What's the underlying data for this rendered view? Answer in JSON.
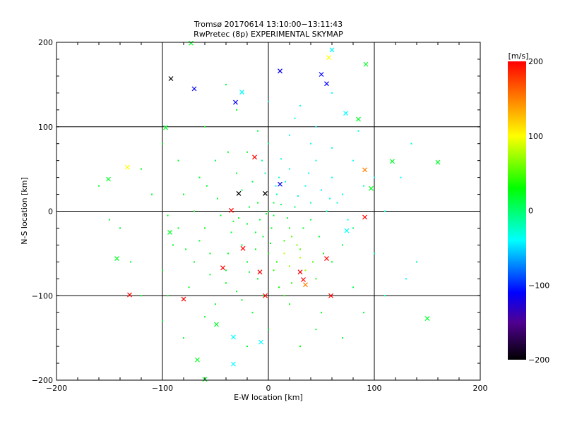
{
  "chart_data": {
    "type": "scatter",
    "title": "Tromsø 20170614 13:10:00−13:11:43",
    "subtitle": "RwPretec (8p) EXPERIMENTAL SKYMAP",
    "xlabel": "E-W location [km]",
    "ylabel": "N-S location [km]",
    "xlim": [
      -200,
      200
    ],
    "ylim": [
      -200,
      200
    ],
    "xticks": [
      -200,
      -100,
      0,
      100,
      200
    ],
    "yticks": [
      -200,
      -100,
      0,
      100,
      200
    ],
    "xtick_labels": [
      "−200",
      "−100",
      "0",
      "100",
      "200"
    ],
    "ytick_labels": [
      "−200",
      "−100",
      "0",
      "100",
      "200"
    ],
    "grid": true,
    "colorbar": {
      "label": "[m/s]",
      "range": [
        -200,
        200
      ],
      "tick_labels": [
        "200",
        "100",
        "0",
        "−100",
        "−200"
      ],
      "ticks": [
        200,
        100,
        0,
        -100,
        -200
      ],
      "stops": [
        {
          "value": 200,
          "color": "#ff0000"
        },
        {
          "value": 150,
          "color": "#ff8000"
        },
        {
          "value": 100,
          "color": "#ffff00"
        },
        {
          "value": 30,
          "color": "#00ff00"
        },
        {
          "value": -40,
          "color": "#00ffff"
        },
        {
          "value": -110,
          "color": "#0000ff"
        },
        {
          "value": -150,
          "color": "#500090"
        },
        {
          "value": -200,
          "color": "#000000"
        }
      ]
    },
    "series": [
      {
        "name": "dots",
        "marker": "dot",
        "columns": [
          "x_km",
          "y_km",
          "velocity_ms"
        ],
        "points": [
          [
            0,
            0,
            20
          ],
          [
            5,
            -5,
            15
          ],
          [
            -10,
            10,
            25
          ],
          [
            12,
            8,
            10
          ],
          [
            -20,
            -15,
            20
          ],
          [
            20,
            -20,
            30
          ],
          [
            -5,
            -30,
            20
          ],
          [
            15,
            -35,
            40
          ],
          [
            -25,
            -40,
            15
          ],
          [
            30,
            -45,
            50
          ],
          [
            -35,
            -25,
            20
          ],
          [
            25,
            5,
            0
          ],
          [
            40,
            10,
            -20
          ],
          [
            35,
            30,
            -35
          ],
          [
            50,
            25,
            -40
          ],
          [
            10,
            40,
            -30
          ],
          [
            20,
            50,
            -25
          ],
          [
            -15,
            35,
            10
          ],
          [
            -30,
            45,
            20
          ],
          [
            45,
            60,
            -30
          ],
          [
            60,
            40,
            -35
          ],
          [
            70,
            20,
            -40
          ],
          [
            55,
            0,
            -20
          ],
          [
            -45,
            -5,
            20
          ],
          [
            -60,
            -20,
            25
          ],
          [
            -55,
            -50,
            20
          ],
          [
            -40,
            -70,
            15
          ],
          [
            -20,
            -60,
            20
          ],
          [
            0,
            -50,
            30
          ],
          [
            5,
            -70,
            40
          ],
          [
            20,
            -65,
            70
          ],
          [
            30,
            -55,
            75
          ],
          [
            15,
            -50,
            80
          ],
          [
            -10,
            -80,
            20
          ],
          [
            10,
            -90,
            30
          ],
          [
            -30,
            -95,
            20
          ],
          [
            45,
            -80,
            40
          ],
          [
            60,
            -60,
            20
          ],
          [
            70,
            -40,
            10
          ],
          [
            80,
            -20,
            0
          ],
          [
            -70,
            0,
            20
          ],
          [
            -80,
            20,
            25
          ],
          [
            -65,
            40,
            20
          ],
          [
            -50,
            60,
            10
          ],
          [
            -20,
            70,
            20
          ],
          [
            0,
            80,
            0
          ],
          [
            20,
            90,
            -30
          ],
          [
            40,
            80,
            -35
          ],
          [
            60,
            75,
            -30
          ],
          [
            80,
            60,
            -40
          ],
          [
            90,
            30,
            -20
          ],
          [
            -90,
            -40,
            20
          ],
          [
            -100,
            -70,
            25
          ],
          [
            -75,
            -90,
            20
          ],
          [
            -50,
            -110,
            20
          ],
          [
            -15,
            -120,
            20
          ],
          [
            20,
            -110,
            30
          ],
          [
            50,
            -120,
            25
          ],
          [
            80,
            -90,
            10
          ],
          [
            100,
            -50,
            -20
          ],
          [
            110,
            0,
            -30
          ],
          [
            100,
            40,
            -40
          ],
          [
            -110,
            20,
            20
          ],
          [
            -120,
            50,
            20
          ],
          [
            -100,
            80,
            20
          ],
          [
            -60,
            100,
            20
          ],
          [
            -30,
            120,
            20
          ],
          [
            0,
            130,
            -30
          ],
          [
            30,
            125,
            -35
          ],
          [
            60,
            140,
            -40
          ],
          [
            -40,
            150,
            10
          ],
          [
            -100,
            -130,
            20
          ],
          [
            -80,
            -150,
            20
          ],
          [
            -20,
            -160,
            20
          ],
          [
            30,
            -160,
            30
          ],
          [
            70,
            -150,
            20
          ],
          [
            130,
            -80,
            -40
          ],
          [
            140,
            -60,
            -20
          ],
          [
            -150,
            -10,
            20
          ],
          [
            -130,
            -60,
            20
          ],
          [
            8,
            20,
            -25
          ],
          [
            -8,
            -10,
            20
          ],
          [
            3,
            -20,
            25
          ],
          [
            18,
            -8,
            20
          ],
          [
            -18,
            5,
            15
          ],
          [
            28,
            18,
            -30
          ],
          [
            -28,
            -8,
            20
          ],
          [
            7,
            30,
            -35
          ],
          [
            -3,
            45,
            -20
          ],
          [
            22,
            -30,
            50
          ],
          [
            -12,
            -45,
            25
          ],
          [
            33,
            -20,
            20
          ],
          [
            -38,
            -50,
            20
          ],
          [
            40,
            -10,
            10
          ],
          [
            48,
            -30,
            15
          ],
          [
            12,
            62,
            -30
          ],
          [
            -25,
            25,
            10
          ],
          [
            38,
            45,
            -40
          ],
          [
            -6,
            60,
            -10
          ],
          [
            65,
            10,
            -30
          ],
          [
            75,
            -10,
            -35
          ],
          [
            -5,
            -100,
            20
          ],
          [
            15,
            -100,
            40
          ],
          [
            -40,
            -85,
            25
          ],
          [
            -70,
            -60,
            20
          ],
          [
            -85,
            -20,
            25
          ],
          [
            -65,
            -35,
            20
          ],
          [
            -48,
            15,
            20
          ],
          [
            -38,
            70,
            20
          ],
          [
            -10,
            95,
            10
          ],
          [
            25,
            110,
            -30
          ],
          [
            45,
            100,
            -40
          ],
          [
            85,
            95,
            -30
          ],
          [
            -85,
            60,
            20
          ],
          [
            -95,
            -100,
            20
          ],
          [
            -120,
            -100,
            20
          ],
          [
            -60,
            -125,
            20
          ],
          [
            0,
            -140,
            25
          ],
          [
            45,
            -140,
            20
          ],
          [
            90,
            -120,
            20
          ],
          [
            110,
            -100,
            -20
          ],
          [
            125,
            40,
            -40
          ],
          [
            135,
            80,
            -30
          ],
          [
            -140,
            -20,
            20
          ],
          [
            -160,
            30,
            20
          ],
          [
            5,
            10,
            10
          ],
          [
            -2,
            -3,
            20
          ],
          [
            16,
            35,
            -30
          ],
          [
            27,
            -40,
            60
          ],
          [
            35,
            -70,
            70
          ],
          [
            8,
            -60,
            35
          ],
          [
            -18,
            -72,
            20
          ],
          [
            -33,
            -12,
            20
          ],
          [
            52,
            -50,
            30
          ],
          [
            58,
            15,
            -30
          ],
          [
            -55,
            -75,
            20
          ],
          [
            -12,
            -25,
            20
          ],
          [
            2,
            -38,
            30
          ],
          [
            42,
            -60,
            50
          ],
          [
            22,
            -85,
            40
          ],
          [
            -25,
            -105,
            20
          ],
          [
            -78,
            -45,
            20
          ],
          [
            -95,
            -5,
            20
          ],
          [
            -58,
            30,
            20
          ]
        ]
      },
      {
        "name": "crosses",
        "marker": "x",
        "columns": [
          "x_km",
          "y_km",
          "velocity_ms"
        ],
        "points": [
          [
            -92,
            157,
            -200
          ],
          [
            -70,
            145,
            -110
          ],
          [
            -73,
            199,
            20
          ],
          [
            -31,
            129,
            -110
          ],
          [
            -25,
            141,
            -40
          ],
          [
            11,
            166,
            -110
          ],
          [
            50,
            162,
            -110
          ],
          [
            55,
            151,
            -110
          ],
          [
            57,
            182,
            100
          ],
          [
            60,
            191,
            -40
          ],
          [
            92,
            174,
            20
          ],
          [
            73,
            116,
            -40
          ],
          [
            85,
            109,
            20
          ],
          [
            -97,
            99,
            20
          ],
          [
            -13,
            64,
            200
          ],
          [
            -151,
            38,
            20
          ],
          [
            -133,
            52,
            100
          ],
          [
            -28,
            21,
            -200
          ],
          [
            -3,
            21,
            -200
          ],
          [
            11,
            32,
            -110
          ],
          [
            91,
            49,
            150
          ],
          [
            97,
            27,
            20
          ],
          [
            160,
            58,
            20
          ],
          [
            117,
            59,
            20
          ],
          [
            -35,
            1,
            200
          ],
          [
            91,
            -7,
            200
          ],
          [
            -93,
            -25,
            20
          ],
          [
            74,
            -23,
            -40
          ],
          [
            -143,
            -56,
            20
          ],
          [
            55,
            -56,
            200
          ],
          [
            -43,
            -67,
            200
          ],
          [
            -24,
            -44,
            200
          ],
          [
            30,
            -72,
            200
          ],
          [
            33,
            -81,
            200
          ],
          [
            35,
            -87,
            150
          ],
          [
            -131,
            -99,
            200
          ],
          [
            -80,
            -104,
            200
          ],
          [
            59,
            -100,
            200
          ],
          [
            150,
            -127,
            20
          ],
          [
            -33,
            -149,
            -40
          ],
          [
            -7,
            -155,
            -40
          ],
          [
            -33,
            -181,
            -40
          ],
          [
            -49,
            -134,
            20
          ],
          [
            -67,
            -176,
            20
          ],
          [
            -60,
            -199,
            20
          ],
          [
            -3,
            -100,
            200
          ],
          [
            -8,
            -72,
            200
          ]
        ]
      }
    ]
  }
}
